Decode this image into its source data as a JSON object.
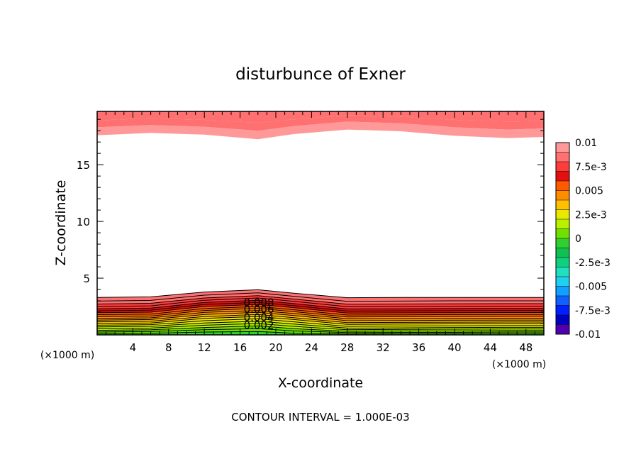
{
  "chart_data": {
    "type": "contour",
    "title": "disturbunce of Exner",
    "xlabel": "X-coordinate",
    "ylabel": "Z-coordinate",
    "x_unit_label": "(×1000 m)",
    "y_unit_label": "(×1000 m)",
    "xlim": [
      0,
      50
    ],
    "ylim": [
      0,
      19.7
    ],
    "x_ticks": [
      4,
      8,
      12,
      16,
      20,
      24,
      28,
      32,
      36,
      40,
      44,
      48
    ],
    "y_ticks": [
      5,
      10,
      15
    ],
    "footer": "CONTOUR INTERVAL = 1.000E-03",
    "contour_interval": 0.001,
    "contour_labels": [
      {
        "text": "0.008",
        "x": 18.1,
        "y": 2.9
      },
      {
        "text": "0.006",
        "x": 18.1,
        "y": 2.3
      },
      {
        "text": "0.004",
        "x": 18.1,
        "y": 1.6
      },
      {
        "text": "0.002",
        "x": 18.1,
        "y": 0.9
      }
    ],
    "colorbar": {
      "range": [
        -0.01,
        0.01
      ],
      "labels": [
        "0.01",
        "7.5e-3",
        "0.005",
        "2.5e-3",
        "0",
        "-2.5e-3",
        "-0.005",
        "-7.5e-3",
        "-0.01"
      ],
      "colors": [
        "#ff9999",
        "#ff7070",
        "#ff3c3c",
        "#e41010",
        "#ff5a00",
        "#ff8c00",
        "#ffc000",
        "#e8e800",
        "#b8f000",
        "#70e000",
        "#30d030",
        "#10c050",
        "#10d080",
        "#20e0c0",
        "#20d0f0",
        "#10a0ff",
        "#1060ff",
        "#0020ff",
        "#0000c0",
        "#5000b0"
      ]
    },
    "field": {
      "x": [
        0,
        6,
        12,
        18,
        22,
        28,
        34,
        40,
        46,
        50
      ],
      "low_levels": [
        0.0005,
        0.001,
        0.0015,
        0.002,
        0.0025,
        0.003,
        0.0035,
        0.004,
        0.0045,
        0.005,
        0.0055,
        0.006,
        0.0065,
        0.007,
        0.0075,
        0.008,
        0.0085,
        0.009,
        0.0095
      ],
      "low_heights": [
        [
          0.1,
          0.15,
          0.25,
          0.3,
          0.15,
          0.08,
          0.1,
          0.1,
          0.12,
          0.12
        ],
        [
          0.25,
          0.3,
          0.45,
          0.55,
          0.35,
          0.2,
          0.22,
          0.22,
          0.25,
          0.25
        ],
        [
          0.4,
          0.45,
          0.65,
          0.8,
          0.55,
          0.32,
          0.35,
          0.35,
          0.38,
          0.38
        ],
        [
          0.55,
          0.6,
          0.85,
          1.0,
          0.75,
          0.45,
          0.48,
          0.5,
          0.52,
          0.52
        ],
        [
          0.7,
          0.75,
          1.05,
          1.2,
          0.95,
          0.6,
          0.62,
          0.65,
          0.66,
          0.66
        ],
        [
          0.85,
          0.9,
          1.25,
          1.42,
          1.15,
          0.75,
          0.78,
          0.8,
          0.82,
          0.82
        ],
        [
          1.0,
          1.05,
          1.45,
          1.62,
          1.35,
          0.92,
          0.95,
          0.97,
          0.98,
          0.98
        ],
        [
          1.15,
          1.2,
          1.62,
          1.8,
          1.52,
          1.08,
          1.1,
          1.12,
          1.13,
          1.13
        ],
        [
          1.3,
          1.35,
          1.8,
          1.98,
          1.7,
          1.25,
          1.27,
          1.29,
          1.3,
          1.3
        ],
        [
          1.45,
          1.5,
          1.98,
          2.15,
          1.88,
          1.42,
          1.44,
          1.46,
          1.47,
          1.47
        ],
        [
          1.6,
          1.66,
          2.15,
          2.33,
          2.05,
          1.58,
          1.6,
          1.62,
          1.63,
          1.63
        ],
        [
          1.78,
          1.83,
          2.32,
          2.5,
          2.22,
          1.75,
          1.77,
          1.79,
          1.8,
          1.8
        ],
        [
          1.95,
          2.0,
          2.5,
          2.68,
          2.4,
          1.92,
          1.94,
          1.96,
          1.97,
          1.97
        ],
        [
          2.12,
          2.18,
          2.68,
          2.86,
          2.58,
          2.1,
          2.12,
          2.14,
          2.15,
          2.15
        ],
        [
          2.3,
          2.36,
          2.86,
          3.05,
          2.76,
          2.28,
          2.3,
          2.32,
          2.33,
          2.33
        ],
        [
          2.5,
          2.56,
          3.05,
          3.25,
          2.96,
          2.48,
          2.5,
          2.52,
          2.53,
          2.53
        ],
        [
          2.72,
          2.78,
          3.25,
          3.45,
          3.16,
          2.7,
          2.72,
          2.74,
          2.75,
          2.75
        ],
        [
          2.98,
          3.04,
          3.5,
          3.7,
          3.4,
          2.96,
          2.98,
          3.0,
          3.0,
          3.0
        ],
        [
          3.3,
          3.35,
          3.78,
          3.98,
          3.68,
          3.28,
          3.3,
          3.3,
          3.3,
          3.3
        ]
      ],
      "high_levels": [
        0.0095,
        0.009,
        0.0085
      ],
      "high_heights": [
        [
          17.6,
          17.8,
          17.65,
          17.25,
          17.7,
          18.1,
          17.95,
          17.55,
          17.35,
          17.45
        ],
        [
          18.3,
          18.5,
          18.35,
          18.0,
          18.4,
          18.8,
          18.65,
          18.3,
          18.1,
          18.2
        ],
        [
          18.9,
          19.1,
          18.95,
          18.7,
          19.0,
          19.35,
          19.25,
          18.95,
          18.8,
          18.85
        ]
      ]
    }
  }
}
